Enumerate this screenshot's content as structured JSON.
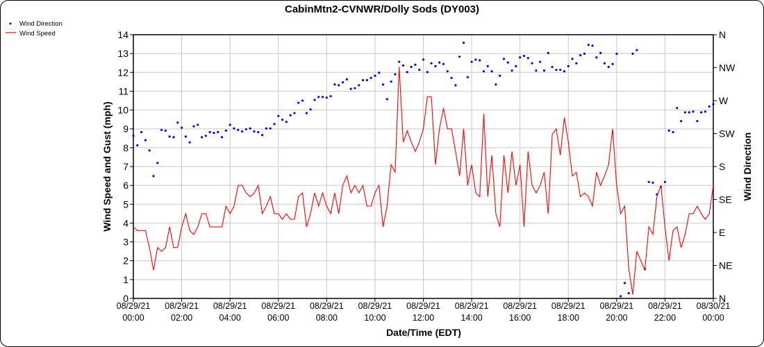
{
  "chart_data": {
    "type": "line",
    "title": "CabinMtn2-CVNWR/Dolly Sods (DY003)",
    "xlabel": "Date/Time (EDT)",
    "ylabel": "Wind Speed and Gust (mph)",
    "y2label": "Wind Direction",
    "ylim": [
      0,
      14
    ],
    "y2lim": [
      0,
      360
    ],
    "xlim_hours": [
      0,
      24
    ],
    "interval_minutes": 10,
    "grid": true,
    "legend_placement": "top-left",
    "y_ticks": [
      "0",
      "1",
      "2",
      "3",
      "4",
      "5",
      "6",
      "7",
      "8",
      "9",
      "10",
      "11",
      "12",
      "13",
      "14"
    ],
    "y2_ticks": [
      "N",
      "NE",
      "E",
      "SE",
      "S",
      "SW",
      "W",
      "NW",
      "N"
    ],
    "x_ticks": [
      {
        "date": "08/29/21",
        "time": "00:00"
      },
      {
        "date": "08/29/21",
        "time": "02:00"
      },
      {
        "date": "08/29/21",
        "time": "04:00"
      },
      {
        "date": "08/29/21",
        "time": "06:00"
      },
      {
        "date": "08/29/21",
        "time": "08:00"
      },
      {
        "date": "08/29/21",
        "time": "10:00"
      },
      {
        "date": "08/29/21",
        "time": "12:00"
      },
      {
        "date": "08/29/21",
        "time": "14:00"
      },
      {
        "date": "08/29/21",
        "time": "16:00"
      },
      {
        "date": "08/29/21",
        "time": "18:00"
      },
      {
        "date": "08/29/21",
        "time": "20:00"
      },
      {
        "date": "08/29/21",
        "time": "22:00"
      },
      {
        "date": "08/30/21",
        "time": "00:00"
      }
    ],
    "series": [
      {
        "name": "Wind Direction",
        "type": "scatter",
        "color": "#0000ff",
        "axis": "right",
        "values": [
          222,
          209,
          227,
          216,
          202,
          167,
          185,
          230,
          229,
          221,
          220,
          240,
          233,
          221,
          213,
          235,
          237,
          220,
          222,
          227,
          226,
          227,
          220,
          229,
          237,
          232,
          230,
          228,
          231,
          232,
          228,
          227,
          223,
          232,
          232,
          238,
          249,
          244,
          241,
          250,
          253,
          267,
          270,
          253,
          258,
          271,
          275,
          275,
          274,
          276,
          292,
          291,
          295,
          299,
          286,
          287,
          291,
          298,
          298,
          301,
          304,
          308,
          292,
          272,
          296,
          306,
          323,
          318,
          309,
          316,
          319,
          312,
          326,
          309,
          321,
          317,
          322,
          320,
          310,
          301,
          291,
          330,
          349,
          302,
          323,
          326,
          325,
          310,
          317,
          310,
          292,
          304,
          327,
          322,
          311,
          317,
          329,
          331,
          328,
          321,
          311,
          323,
          311,
          335,
          316,
          312,
          312,
          310,
          317,
          327,
          321,
          332,
          334,
          346,
          345,
          329,
          335,
          321,
          316,
          320,
          334,
          3,
          21,
          7,
          334,
          339,
          null,
          40,
          159,
          158,
          142,
          152,
          159,
          229,
          227,
          260,
          242,
          254,
          254,
          255,
          242,
          254,
          255,
          262,
          265
        ]
      },
      {
        "name": "Wind Speed",
        "type": "line",
        "color": "#ff0000",
        "axis": "left",
        "values": [
          3.8,
          3.6,
          3.6,
          3.6,
          2.7,
          1.5,
          2.7,
          2.5,
          2.7,
          3.8,
          2.7,
          2.7,
          3.8,
          4.5,
          3.6,
          3.4,
          3.8,
          4.5,
          4.5,
          3.8,
          3.8,
          3.8,
          3.8,
          4.9,
          4.5,
          4.9,
          6.0,
          6.0,
          5.6,
          5.4,
          5.6,
          6.0,
          4.5,
          4.9,
          5.4,
          4.5,
          4.5,
          4.2,
          4.5,
          4.2,
          4.2,
          5.4,
          5.6,
          3.8,
          4.5,
          5.6,
          4.9,
          5.6,
          4.9,
          4.5,
          5.6,
          4.5,
          6.0,
          6.5,
          5.6,
          6.0,
          5.6,
          6.0,
          4.9,
          4.9,
          5.6,
          6.0,
          3.8,
          4.9,
          7.1,
          6.7,
          12.3,
          8.3,
          8.9,
          8.3,
          7.8,
          8.3,
          9.0,
          10.7,
          10.7,
          7.1,
          9.0,
          10.1,
          9.0,
          9.0,
          7.8,
          6.5,
          9.0,
          6.0,
          7.1,
          5.6,
          5.4,
          9.8,
          5.4,
          7.6,
          4.5,
          3.8,
          7.6,
          5.6,
          7.8,
          6.0,
          7.1,
          3.8,
          7.8,
          6.0,
          5.6,
          6.0,
          6.7,
          4.5,
          8.7,
          9.0,
          7.6,
          9.6,
          8.3,
          6.5,
          6.7,
          5.4,
          5.6,
          5.4,
          4.9,
          6.7,
          6.0,
          6.5,
          7.1,
          9.0,
          6.0,
          4.5,
          4.9,
          1.6,
          0.2,
          2.5,
          2.0,
          1.5,
          3.8,
          3.4,
          5.4,
          6.0,
          3.8,
          2.0,
          3.6,
          3.8,
          2.7,
          3.4,
          4.5,
          4.5,
          4.9,
          4.5,
          4.2,
          4.5,
          6.0
        ]
      }
    ]
  }
}
